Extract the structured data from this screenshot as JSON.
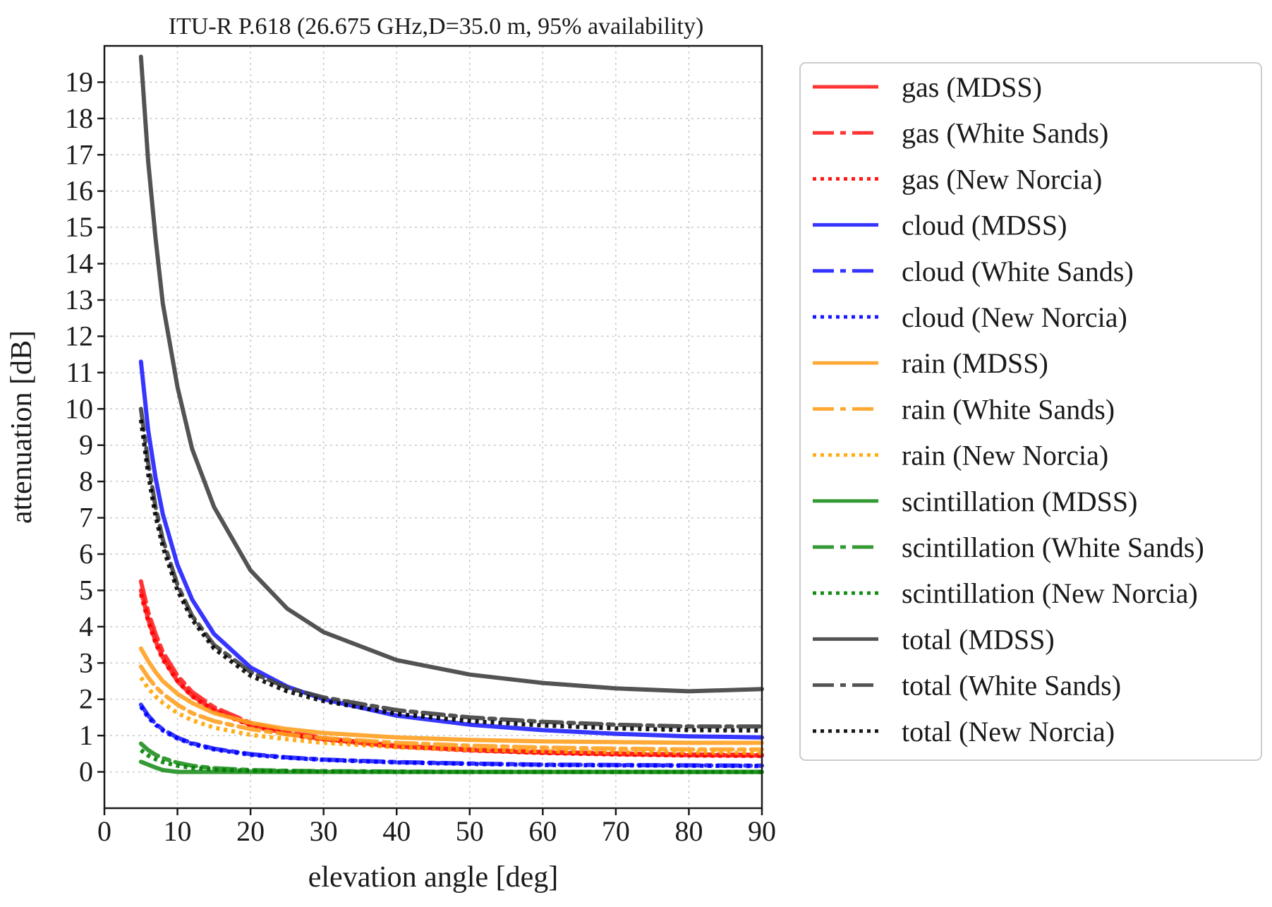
{
  "chart_data": {
    "type": "line",
    "title": "ITU-R P.618 (26.675 GHz,D=35.0 m, 95% availability)",
    "xlabel": "elevation angle [deg]",
    "ylabel": "attenuation [dB]",
    "xlim": [
      0,
      90
    ],
    "ylim": [
      -1,
      20
    ],
    "xticks": [
      0,
      10,
      20,
      30,
      40,
      50,
      60,
      70,
      80,
      90
    ],
    "yticks": [
      0,
      1,
      2,
      3,
      4,
      5,
      6,
      7,
      8,
      9,
      10,
      11,
      12,
      13,
      14,
      15,
      16,
      17,
      18,
      19
    ],
    "grid": true,
    "legend_position": "outside-right",
    "x": [
      5,
      6,
      7,
      8,
      10,
      12,
      15,
      20,
      25,
      30,
      40,
      50,
      60,
      70,
      80,
      90
    ],
    "series": [
      {
        "name": "gas (MDSS)",
        "color": "#ff2020",
        "style": "solid",
        "values": [
          5.0,
          4.2,
          3.6,
          3.15,
          2.5,
          2.1,
          1.7,
          1.3,
          1.05,
          0.9,
          0.7,
          0.6,
          0.53,
          0.49,
          0.46,
          0.45
        ]
      },
      {
        "name": "gas (White Sands)",
        "color": "#ff2020",
        "style": "dashdot",
        "values": [
          5.25,
          4.4,
          3.8,
          3.3,
          2.65,
          2.2,
          1.78,
          1.35,
          1.1,
          0.93,
          0.72,
          0.62,
          0.55,
          0.51,
          0.48,
          0.47
        ]
      },
      {
        "name": "gas (New Norcia)",
        "color": "#ff0000",
        "style": "dotted",
        "values": [
          4.9,
          4.15,
          3.55,
          3.1,
          2.5,
          2.08,
          1.68,
          1.28,
          1.04,
          0.88,
          0.69,
          0.59,
          0.52,
          0.48,
          0.45,
          0.44
        ]
      },
      {
        "name": "cloud (MDSS)",
        "color": "#2020ff",
        "style": "solid",
        "values": [
          11.3,
          9.4,
          8.1,
          7.1,
          5.7,
          4.75,
          3.8,
          2.88,
          2.35,
          2.0,
          1.55,
          1.3,
          1.15,
          1.05,
          0.98,
          0.95
        ]
      },
      {
        "name": "cloud (White Sands)",
        "color": "#2020ff",
        "style": "dashdot",
        "values": [
          1.85,
          1.55,
          1.33,
          1.17,
          0.94,
          0.79,
          0.64,
          0.49,
          0.4,
          0.34,
          0.27,
          0.23,
          0.2,
          0.19,
          0.18,
          0.17
        ]
      },
      {
        "name": "cloud (New Norcia)",
        "color": "#0000ff",
        "style": "dotted",
        "values": [
          1.8,
          1.5,
          1.3,
          1.14,
          0.92,
          0.77,
          0.62,
          0.47,
          0.39,
          0.33,
          0.26,
          0.22,
          0.19,
          0.18,
          0.17,
          0.16
        ]
      },
      {
        "name": "rain (MDSS)",
        "color": "#ffa020",
        "style": "solid",
        "values": [
          3.4,
          3.05,
          2.75,
          2.5,
          2.15,
          1.9,
          1.62,
          1.35,
          1.18,
          1.07,
          0.95,
          0.88,
          0.84,
          0.82,
          0.8,
          0.8
        ]
      },
      {
        "name": "rain (White Sands)",
        "color": "#ffa020",
        "style": "dashdot",
        "values": [
          2.9,
          2.6,
          2.35,
          2.15,
          1.85,
          1.62,
          1.4,
          1.18,
          1.03,
          0.93,
          0.8,
          0.72,
          0.67,
          0.64,
          0.62,
          0.62
        ]
      },
      {
        "name": "rain (New Norcia)",
        "color": "#ffa500",
        "style": "dotted",
        "values": [
          2.6,
          2.3,
          2.08,
          1.9,
          1.62,
          1.42,
          1.22,
          1.02,
          0.9,
          0.8,
          0.68,
          0.61,
          0.57,
          0.54,
          0.53,
          0.52
        ]
      },
      {
        "name": "scintillation (MDSS)",
        "color": "#208f20",
        "style": "solid",
        "values": [
          0.28,
          0.2,
          0.12,
          0.05,
          0.0,
          0.0,
          0.0,
          0.0,
          0.0,
          0.0,
          0.0,
          0.0,
          0.0,
          0.0,
          0.0,
          0.0
        ]
      },
      {
        "name": "scintillation (White Sands)",
        "color": "#208f20",
        "style": "dashdot",
        "values": [
          0.78,
          0.6,
          0.47,
          0.38,
          0.25,
          0.17,
          0.1,
          0.05,
          0.03,
          0.02,
          0.01,
          0.0,
          0.0,
          0.0,
          0.0,
          0.0
        ]
      },
      {
        "name": "scintillation (New Norcia)",
        "color": "#008000",
        "style": "dotted",
        "values": [
          0.6,
          0.45,
          0.35,
          0.27,
          0.17,
          0.11,
          0.06,
          0.03,
          0.02,
          0.01,
          0.0,
          0.0,
          0.0,
          0.0,
          0.0,
          0.0
        ]
      },
      {
        "name": "total (MDSS)",
        "color": "#404040",
        "style": "solid",
        "values": [
          19.7,
          16.8,
          14.7,
          12.9,
          10.6,
          8.9,
          7.3,
          5.55,
          4.5,
          3.85,
          3.08,
          2.68,
          2.45,
          2.3,
          2.22,
          2.28
        ]
      },
      {
        "name": "total (White Sands)",
        "color": "#404040",
        "style": "dashdot",
        "values": [
          10.0,
          8.5,
          7.3,
          6.4,
          5.15,
          4.3,
          3.5,
          2.75,
          2.32,
          2.05,
          1.7,
          1.5,
          1.38,
          1.3,
          1.25,
          1.25
        ]
      },
      {
        "name": "total (New Norcia)",
        "color": "#000000",
        "style": "dotted",
        "values": [
          9.7,
          8.2,
          7.05,
          6.2,
          5.0,
          4.2,
          3.4,
          2.65,
          2.22,
          1.95,
          1.6,
          1.4,
          1.28,
          1.2,
          1.15,
          1.14
        ]
      }
    ]
  }
}
